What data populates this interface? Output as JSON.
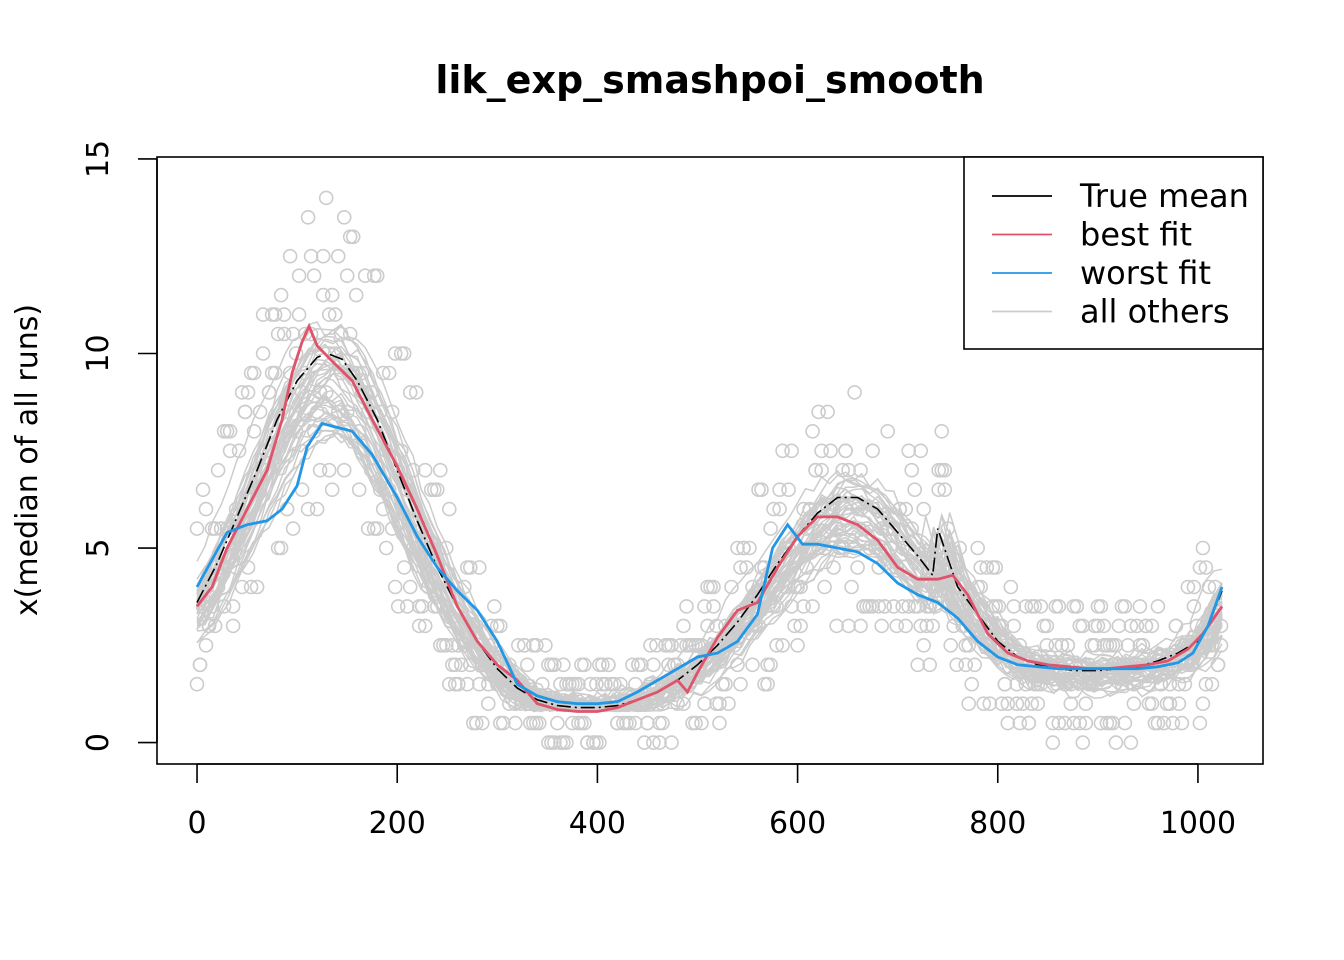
{
  "chart_data": {
    "type": "line",
    "title": "lik_exp_smashpoi_smooth",
    "xlabel": "",
    "ylabel": "x(median of all runs)",
    "xlim": [
      -40,
      1065
    ],
    "ylim": [
      -0.55,
      15.05
    ],
    "xticks": [
      0,
      200,
      400,
      600,
      800,
      1000
    ],
    "yticks": [
      0,
      5,
      10,
      15
    ],
    "grid": false,
    "legend_position": "top-right",
    "legend": [
      {
        "label": "True mean",
        "color": "#000000"
      },
      {
        "label": "best fit",
        "color": "#DF536B"
      },
      {
        "label": "worst fit",
        "color": "#2297E6"
      },
      {
        "label": "all others",
        "color": "#CCCCCC"
      }
    ],
    "series": [
      {
        "name": "True mean",
        "color": "#000000",
        "dashed": true,
        "points": [
          [
            0,
            3.6
          ],
          [
            20,
            4.6
          ],
          [
            40,
            5.8
          ],
          [
            60,
            7.0
          ],
          [
            80,
            8.3
          ],
          [
            100,
            9.3
          ],
          [
            120,
            9.9
          ],
          [
            130,
            10.0
          ],
          [
            145,
            9.85
          ],
          [
            160,
            9.3
          ],
          [
            180,
            8.3
          ],
          [
            200,
            7.0
          ],
          [
            220,
            5.7
          ],
          [
            240,
            4.5
          ],
          [
            260,
            3.5
          ],
          [
            280,
            2.6
          ],
          [
            300,
            1.9
          ],
          [
            320,
            1.4
          ],
          [
            340,
            1.1
          ],
          [
            360,
            0.95
          ],
          [
            380,
            0.9
          ],
          [
            400,
            0.9
          ],
          [
            420,
            0.95
          ],
          [
            440,
            1.1
          ],
          [
            460,
            1.3
          ],
          [
            480,
            1.6
          ],
          [
            500,
            2.0
          ],
          [
            520,
            2.5
          ],
          [
            540,
            3.1
          ],
          [
            560,
            3.8
          ],
          [
            580,
            4.6
          ],
          [
            600,
            5.3
          ],
          [
            620,
            5.9
          ],
          [
            640,
            6.3
          ],
          [
            660,
            6.3
          ],
          [
            680,
            6.0
          ],
          [
            700,
            5.4
          ],
          [
            720,
            4.8
          ],
          [
            735,
            4.3
          ],
          [
            740,
            5.5
          ],
          [
            760,
            4.0
          ],
          [
            780,
            3.3
          ],
          [
            800,
            2.6
          ],
          [
            820,
            2.2
          ],
          [
            840,
            2.0
          ],
          [
            860,
            1.9
          ],
          [
            880,
            1.85
          ],
          [
            900,
            1.85
          ],
          [
            920,
            1.9
          ],
          [
            940,
            1.95
          ],
          [
            960,
            2.1
          ],
          [
            980,
            2.3
          ],
          [
            1000,
            2.6
          ],
          [
            1010,
            3.0
          ],
          [
            1024,
            3.9
          ]
        ]
      },
      {
        "name": "best fit",
        "color": "#DF536B",
        "points": [
          [
            0,
            3.5
          ],
          [
            15,
            4.0
          ],
          [
            30,
            5.0
          ],
          [
            50,
            6.0
          ],
          [
            70,
            7.0
          ],
          [
            85,
            8.3
          ],
          [
            95,
            9.5
          ],
          [
            105,
            10.3
          ],
          [
            112,
            10.7
          ],
          [
            120,
            10.2
          ],
          [
            135,
            9.8
          ],
          [
            155,
            9.3
          ],
          [
            175,
            8.3
          ],
          [
            200,
            7.1
          ],
          [
            220,
            6.0
          ],
          [
            240,
            4.8
          ],
          [
            260,
            3.5
          ],
          [
            280,
            2.6
          ],
          [
            300,
            2.0
          ],
          [
            320,
            1.6
          ],
          [
            340,
            1.0
          ],
          [
            360,
            0.85
          ],
          [
            380,
            0.8
          ],
          [
            400,
            0.8
          ],
          [
            420,
            0.9
          ],
          [
            440,
            1.1
          ],
          [
            460,
            1.3
          ],
          [
            480,
            1.6
          ],
          [
            490,
            1.3
          ],
          [
            500,
            1.8
          ],
          [
            520,
            2.7
          ],
          [
            540,
            3.4
          ],
          [
            560,
            3.6
          ],
          [
            580,
            4.5
          ],
          [
            600,
            5.3
          ],
          [
            620,
            5.8
          ],
          [
            640,
            5.8
          ],
          [
            660,
            5.6
          ],
          [
            680,
            5.2
          ],
          [
            700,
            4.5
          ],
          [
            720,
            4.2
          ],
          [
            740,
            4.2
          ],
          [
            755,
            4.3
          ],
          [
            770,
            3.8
          ],
          [
            790,
            2.8
          ],
          [
            810,
            2.3
          ],
          [
            830,
            2.1
          ],
          [
            850,
            2.0
          ],
          [
            870,
            1.95
          ],
          [
            890,
            1.9
          ],
          [
            910,
            1.9
          ],
          [
            930,
            1.95
          ],
          [
            950,
            2.0
          ],
          [
            970,
            2.1
          ],
          [
            990,
            2.4
          ],
          [
            1005,
            2.8
          ],
          [
            1024,
            3.5
          ]
        ]
      },
      {
        "name": "worst fit",
        "color": "#2297E6",
        "points": [
          [
            0,
            4.0
          ],
          [
            15,
            4.7
          ],
          [
            30,
            5.4
          ],
          [
            50,
            5.6
          ],
          [
            70,
            5.7
          ],
          [
            85,
            6.0
          ],
          [
            100,
            6.6
          ],
          [
            110,
            7.6
          ],
          [
            125,
            8.2
          ],
          [
            140,
            8.1
          ],
          [
            155,
            8.0
          ],
          [
            175,
            7.4
          ],
          [
            200,
            6.3
          ],
          [
            220,
            5.3
          ],
          [
            240,
            4.5
          ],
          [
            260,
            3.9
          ],
          [
            280,
            3.4
          ],
          [
            300,
            2.6
          ],
          [
            320,
            1.5
          ],
          [
            340,
            1.2
          ],
          [
            360,
            1.05
          ],
          [
            380,
            1.0
          ],
          [
            400,
            1.0
          ],
          [
            420,
            1.05
          ],
          [
            440,
            1.3
          ],
          [
            460,
            1.6
          ],
          [
            480,
            1.9
          ],
          [
            500,
            2.2
          ],
          [
            520,
            2.3
          ],
          [
            540,
            2.6
          ],
          [
            560,
            3.3
          ],
          [
            575,
            5.0
          ],
          [
            590,
            5.6
          ],
          [
            605,
            5.1
          ],
          [
            620,
            5.1
          ],
          [
            640,
            5.0
          ],
          [
            660,
            4.9
          ],
          [
            680,
            4.6
          ],
          [
            700,
            4.1
          ],
          [
            720,
            3.8
          ],
          [
            740,
            3.6
          ],
          [
            760,
            3.2
          ],
          [
            780,
            2.6
          ],
          [
            800,
            2.2
          ],
          [
            820,
            2.0
          ],
          [
            840,
            1.95
          ],
          [
            860,
            1.9
          ],
          [
            880,
            1.9
          ],
          [
            900,
            1.9
          ],
          [
            920,
            1.9
          ],
          [
            940,
            1.9
          ],
          [
            960,
            1.95
          ],
          [
            980,
            2.05
          ],
          [
            995,
            2.3
          ],
          [
            1010,
            3.0
          ],
          [
            1024,
            4.0
          ]
        ]
      }
    ]
  }
}
